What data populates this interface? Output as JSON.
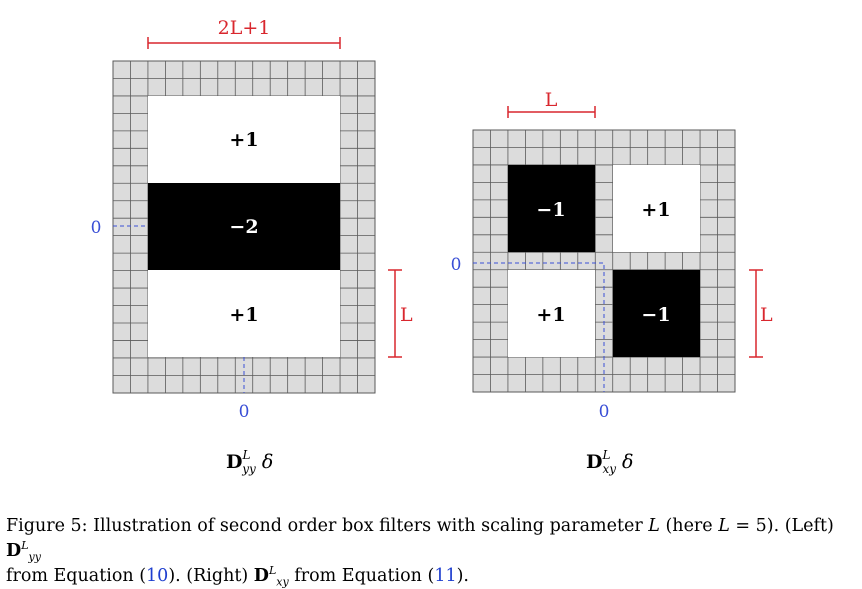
{
  "left_filter": {
    "width_label": "2L+1",
    "cells": {
      "top": "+1",
      "middle": "−2",
      "bottom": "+1"
    },
    "origin_left": "0",
    "origin_bottom": "0",
    "side_label": "L",
    "name": "D",
    "name_sup": "L",
    "name_sub": "yy",
    "name_suffix": "δ"
  },
  "right_filter": {
    "width_label": "L",
    "cells": {
      "top_left": "−1",
      "top_right": "+1",
      "bottom_left": "+1",
      "bottom_right": "−1"
    },
    "origin_left": "0",
    "origin_bottom": "0",
    "side_label": "L",
    "name": "D",
    "name_sup": "L",
    "name_sub": "xy",
    "name_suffix": "δ"
  },
  "caption": {
    "prefix": "Figure 5: Illustration of second order box filters with scaling parameter ",
    "param": "L",
    "here_open": " (here ",
    "here_eq": "L",
    "here_val": " = 5). (Left) ",
    "left_sym": "D",
    "left_sup": "L",
    "left_sub": "yy",
    "line2_a": "from Equation (",
    "eq1": "10",
    "line2_b": "). (Right) ",
    "right_sym": "D",
    "right_sup": "L",
    "right_sub": "xy",
    "line2_c": " from Equation (",
    "eq2": "11",
    "line2_d": ")."
  },
  "colors": {
    "dimension": "#d9272e",
    "origin": "#3a4fd6",
    "grid_fill": "#dcdcdc",
    "grid_line": "#5a5a5a",
    "negative": "#000000",
    "positive": "#ffffff"
  }
}
